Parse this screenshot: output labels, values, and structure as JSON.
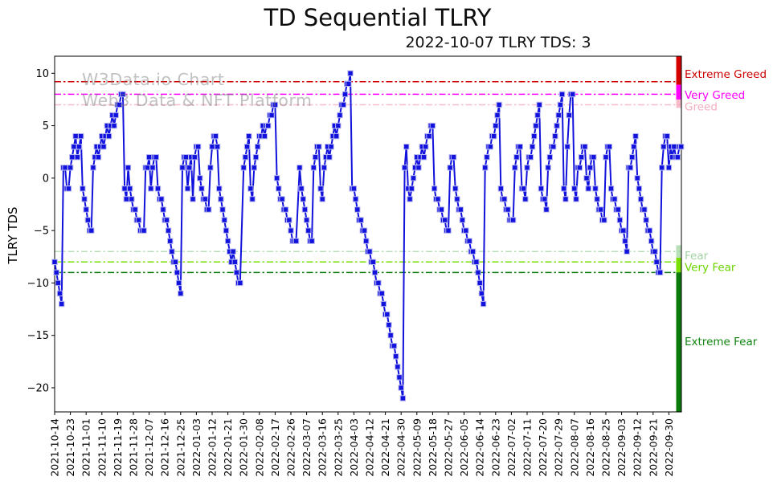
{
  "title": "TD Sequential TLRY",
  "subtitle": "2022-10-07 TLRY TDS: 3",
  "watermark": {
    "line1": "W3Data.io Chart",
    "line2": "Web3 Data & NFT Platform"
  },
  "y_axis_label": "TLRY TDS",
  "chart_data": {
    "type": "line",
    "marker": "square",
    "series_name": "TLRY TDS",
    "line_color": "#1212dd",
    "marker_edge_color": "#b9b9f2",
    "start_date": "2021-10-14",
    "end_date": "2022-10-07",
    "x_tick_interval_days": 9,
    "x_tick_labels": [
      "2021-10-14",
      "2021-10-23",
      "2021-11-01",
      "2021-11-10",
      "2021-11-19",
      "2021-11-28",
      "2021-12-07",
      "2021-12-16",
      "2021-12-25",
      "2022-01-03",
      "2022-01-12",
      "2022-01-21",
      "2022-01-30",
      "2022-02-08",
      "2022-02-17",
      "2022-02-26",
      "2022-03-07",
      "2022-03-16",
      "2022-03-25",
      "2022-04-03",
      "2022-04-12",
      "2022-04-21",
      "2022-04-30",
      "2022-05-09",
      "2022-05-18",
      "2022-05-27",
      "2022-06-05",
      "2022-06-14",
      "2022-06-23",
      "2022-07-02",
      "2022-07-11",
      "2022-07-20",
      "2022-07-29",
      "2022-08-07",
      "2022-08-16",
      "2022-08-25",
      "2022-09-03",
      "2022-09-12",
      "2022-09-21",
      "2022-09-30"
    ],
    "y_ticks": [
      10,
      5,
      0,
      -5,
      -10,
      -15,
      -20
    ],
    "ylim": [
      -22.3,
      11.63
    ],
    "xlim_days": [
      0,
      358
    ],
    "grid": false,
    "legend": "none",
    "zones": [
      {
        "label": "Extreme Greed",
        "line_value": 9.2,
        "band": [
          11.63,
          8.9
        ],
        "color": "#d40000",
        "label_color": "#cc0000",
        "label_value": 9.9,
        "opacity": 1
      },
      {
        "label": "Very Greed",
        "line_value": 8,
        "band": [
          8.9,
          7.5
        ],
        "color": "#ff00ff",
        "label_color": "#ff00ff",
        "label_value": 7.9,
        "opacity": 1
      },
      {
        "label": "Greed",
        "line_value": 7,
        "band": [
          7.5,
          6.7
        ],
        "color": "#f6a6b8",
        "label_color": "#f3adbd",
        "label_value": 6.8,
        "opacity": 0.75
      },
      {
        "label": "Fear",
        "line_value": -7,
        "band": [
          -6.4,
          -7.6
        ],
        "color": "#a6d7a6",
        "label_color": "#a2d2a2",
        "label_value": -7.4,
        "opacity": 0.8
      },
      {
        "label": "Very Fear",
        "line_value": -8,
        "band": [
          -7.6,
          -9.0
        ],
        "color": "#79df00",
        "label_color": "#6cd400",
        "label_value": -8.5,
        "opacity": 1
      },
      {
        "label": "Extreme Fear",
        "line_value": -9,
        "band": [
          -9.0,
          -22.3
        ],
        "color": "#0a7a0a",
        "label_color": "#128312",
        "label_value": -15.6,
        "opacity": 1
      }
    ],
    "points": [
      [
        0,
        -8
      ],
      [
        1,
        -9
      ],
      [
        2,
        -10
      ],
      [
        3,
        -11
      ],
      [
        4,
        -12
      ],
      [
        5,
        1
      ],
      [
        6,
        1
      ],
      [
        7,
        -1
      ],
      [
        8,
        -1
      ],
      [
        9,
        1
      ],
      [
        10,
        2
      ],
      [
        11,
        3
      ],
      [
        12,
        4
      ],
      [
        13,
        2
      ],
      [
        14,
        3
      ],
      [
        15,
        4
      ],
      [
        16,
        -1
      ],
      [
        17,
        -2
      ],
      [
        18,
        -3
      ],
      [
        19,
        -4
      ],
      [
        20,
        -5
      ],
      [
        21,
        -5
      ],
      [
        22,
        1
      ],
      [
        23,
        2
      ],
      [
        24,
        3
      ],
      [
        25,
        2
      ],
      [
        26,
        3
      ],
      [
        27,
        4
      ],
      [
        28,
        3
      ],
      [
        29,
        4
      ],
      [
        30,
        5
      ],
      [
        31,
        4
      ],
      [
        32,
        5
      ],
      [
        33,
        6
      ],
      [
        34,
        5
      ],
      [
        35,
        6
      ],
      [
        36,
        7
      ],
      [
        37,
        7
      ],
      [
        38,
        8
      ],
      [
        39,
        8
      ],
      [
        40,
        -1
      ],
      [
        41,
        -2
      ],
      [
        42,
        1
      ],
      [
        43,
        -1
      ],
      [
        44,
        -2
      ],
      [
        45,
        -3
      ],
      [
        46,
        -3
      ],
      [
        47,
        -4
      ],
      [
        48,
        -4
      ],
      [
        49,
        -5
      ],
      [
        50,
        -5
      ],
      [
        51,
        -5
      ],
      [
        52,
        1
      ],
      [
        53,
        1
      ],
      [
        54,
        2
      ],
      [
        55,
        -1
      ],
      [
        56,
        1
      ],
      [
        57,
        2
      ],
      [
        58,
        2
      ],
      [
        59,
        -1
      ],
      [
        60,
        -2
      ],
      [
        61,
        -2
      ],
      [
        62,
        -3
      ],
      [
        63,
        -4
      ],
      [
        64,
        -4
      ],
      [
        65,
        -5
      ],
      [
        66,
        -6
      ],
      [
        67,
        -7
      ],
      [
        68,
        -8
      ],
      [
        69,
        -8
      ],
      [
        70,
        -9
      ],
      [
        71,
        -10
      ],
      [
        72,
        -11
      ],
      [
        73,
        1
      ],
      [
        74,
        2
      ],
      [
        75,
        2
      ],
      [
        76,
        -1
      ],
      [
        77,
        1
      ],
      [
        78,
        2
      ],
      [
        79,
        -2
      ],
      [
        80,
        2
      ],
      [
        81,
        3
      ],
      [
        82,
        3
      ],
      [
        83,
        0
      ],
      [
        84,
        -1
      ],
      [
        85,
        -2
      ],
      [
        86,
        -2
      ],
      [
        87,
        -3
      ],
      [
        88,
        -3
      ],
      [
        89,
        1
      ],
      [
        90,
        3
      ],
      [
        91,
        4
      ],
      [
        92,
        4
      ],
      [
        93,
        3
      ],
      [
        94,
        -1
      ],
      [
        95,
        -2
      ],
      [
        96,
        -3
      ],
      [
        97,
        -4
      ],
      [
        98,
        -5
      ],
      [
        99,
        -6
      ],
      [
        100,
        -7
      ],
      [
        101,
        -8
      ],
      [
        102,
        -7
      ],
      [
        103,
        -8
      ],
      [
        104,
        -9
      ],
      [
        105,
        -10
      ],
      [
        106,
        -10
      ],
      [
        108,
        1
      ],
      [
        109,
        2
      ],
      [
        110,
        3
      ],
      [
        111,
        4
      ],
      [
        112,
        -1
      ],
      [
        113,
        -2
      ],
      [
        114,
        1
      ],
      [
        115,
        2
      ],
      [
        116,
        3
      ],
      [
        117,
        4
      ],
      [
        118,
        4
      ],
      [
        119,
        5
      ],
      [
        120,
        4
      ],
      [
        121,
        5
      ],
      [
        122,
        5
      ],
      [
        123,
        6
      ],
      [
        124,
        6
      ],
      [
        125,
        7
      ],
      [
        126,
        7
      ],
      [
        127,
        0
      ],
      [
        128,
        -1
      ],
      [
        129,
        -2
      ],
      [
        130,
        -2
      ],
      [
        131,
        -3
      ],
      [
        132,
        -3
      ],
      [
        133,
        -4
      ],
      [
        134,
        -4
      ],
      [
        135,
        -5
      ],
      [
        136,
        -6
      ],
      [
        137,
        -6
      ],
      [
        138,
        -6
      ],
      [
        140,
        1
      ],
      [
        141,
        -1
      ],
      [
        142,
        -2
      ],
      [
        143,
        -3
      ],
      [
        144,
        -4
      ],
      [
        145,
        -5
      ],
      [
        146,
        -6
      ],
      [
        147,
        -6
      ],
      [
        148,
        1
      ],
      [
        149,
        2
      ],
      [
        150,
        3
      ],
      [
        151,
        3
      ],
      [
        152,
        -1
      ],
      [
        153,
        -2
      ],
      [
        154,
        1
      ],
      [
        155,
        2
      ],
      [
        156,
        3
      ],
      [
        157,
        2
      ],
      [
        158,
        3
      ],
      [
        159,
        4
      ],
      [
        160,
        5
      ],
      [
        161,
        4
      ],
      [
        162,
        5
      ],
      [
        163,
        6
      ],
      [
        164,
        7
      ],
      [
        165,
        7
      ],
      [
        166,
        8
      ],
      [
        167,
        9
      ],
      [
        168,
        9
      ],
      [
        169,
        10
      ],
      [
        170,
        -1
      ],
      [
        171,
        -1
      ],
      [
        172,
        -2
      ],
      [
        173,
        -3
      ],
      [
        174,
        -4
      ],
      [
        175,
        -4
      ],
      [
        176,
        -5
      ],
      [
        177,
        -5
      ],
      [
        178,
        -6
      ],
      [
        179,
        -7
      ],
      [
        180,
        -7
      ],
      [
        181,
        -8
      ],
      [
        182,
        -8
      ],
      [
        183,
        -9
      ],
      [
        184,
        -10
      ],
      [
        185,
        -10
      ],
      [
        186,
        -11
      ],
      [
        187,
        -11
      ],
      [
        188,
        -12
      ],
      [
        189,
        -13
      ],
      [
        190,
        -13
      ],
      [
        191,
        -14
      ],
      [
        192,
        -15
      ],
      [
        193,
        -16
      ],
      [
        194,
        -16
      ],
      [
        195,
        -17
      ],
      [
        196,
        -18
      ],
      [
        197,
        -19
      ],
      [
        198,
        -20
      ],
      [
        199,
        -21
      ],
      [
        200,
        1
      ],
      [
        201,
        3
      ],
      [
        202,
        -1
      ],
      [
        203,
        -2
      ],
      [
        204,
        -1
      ],
      [
        205,
        0
      ],
      [
        206,
        1
      ],
      [
        207,
        2
      ],
      [
        208,
        1
      ],
      [
        209,
        2
      ],
      [
        210,
        3
      ],
      [
        211,
        2
      ],
      [
        212,
        3
      ],
      [
        213,
        4
      ],
      [
        214,
        4
      ],
      [
        215,
        5
      ],
      [
        216,
        5
      ],
      [
        217,
        -1
      ],
      [
        218,
        -2
      ],
      [
        219,
        -2
      ],
      [
        220,
        -3
      ],
      [
        221,
        -3
      ],
      [
        222,
        -4
      ],
      [
        223,
        -4
      ],
      [
        224,
        -5
      ],
      [
        225,
        -5
      ],
      [
        226,
        1
      ],
      [
        227,
        2
      ],
      [
        228,
        2
      ],
      [
        229,
        -1
      ],
      [
        230,
        -2
      ],
      [
        231,
        -3
      ],
      [
        232,
        -3
      ],
      [
        233,
        -4
      ],
      [
        234,
        -5
      ],
      [
        235,
        -5
      ],
      [
        236,
        -6
      ],
      [
        237,
        -6
      ],
      [
        238,
        -7
      ],
      [
        239,
        -7
      ],
      [
        240,
        -8
      ],
      [
        241,
        -8
      ],
      [
        242,
        -9
      ],
      [
        243,
        -10
      ],
      [
        244,
        -11
      ],
      [
        245,
        -12
      ],
      [
        246,
        1
      ],
      [
        247,
        2
      ],
      [
        248,
        3
      ],
      [
        249,
        3
      ],
      [
        250,
        4
      ],
      [
        251,
        4
      ],
      [
        252,
        5
      ],
      [
        253,
        6
      ],
      [
        254,
        7
      ],
      [
        255,
        -1
      ],
      [
        256,
        -2
      ],
      [
        257,
        -2
      ],
      [
        258,
        -3
      ],
      [
        259,
        -3
      ],
      [
        260,
        -4
      ],
      [
        261,
        -4
      ],
      [
        262,
        -4
      ],
      [
        263,
        1
      ],
      [
        264,
        2
      ],
      [
        265,
        3
      ],
      [
        266,
        3
      ],
      [
        267,
        -1
      ],
      [
        268,
        -1
      ],
      [
        269,
        -2
      ],
      [
        270,
        1
      ],
      [
        271,
        2
      ],
      [
        272,
        2
      ],
      [
        273,
        3
      ],
      [
        274,
        4
      ],
      [
        275,
        5
      ],
      [
        276,
        6
      ],
      [
        277,
        7
      ],
      [
        278,
        -1
      ],
      [
        279,
        -2
      ],
      [
        280,
        -2
      ],
      [
        281,
        -3
      ],
      [
        282,
        1
      ],
      [
        283,
        2
      ],
      [
        284,
        3
      ],
      [
        285,
        3
      ],
      [
        286,
        4
      ],
      [
        287,
        5
      ],
      [
        288,
        6
      ],
      [
        289,
        7
      ],
      [
        290,
        8
      ],
      [
        291,
        -1
      ],
      [
        292,
        -2
      ],
      [
        293,
        3
      ],
      [
        294,
        6
      ],
      [
        295,
        8
      ],
      [
        296,
        8
      ],
      [
        297,
        -1
      ],
      [
        298,
        -2
      ],
      [
        299,
        1
      ],
      [
        300,
        1
      ],
      [
        301,
        2
      ],
      [
        302,
        3
      ],
      [
        303,
        3
      ],
      [
        304,
        0
      ],
      [
        305,
        -1
      ],
      [
        306,
        1
      ],
      [
        307,
        2
      ],
      [
        308,
        2
      ],
      [
        309,
        -1
      ],
      [
        310,
        -2
      ],
      [
        311,
        -3
      ],
      [
        312,
        -3
      ],
      [
        313,
        -4
      ],
      [
        314,
        -4
      ],
      [
        315,
        2
      ],
      [
        316,
        3
      ],
      [
        317,
        3
      ],
      [
        318,
        -1
      ],
      [
        319,
        -2
      ],
      [
        320,
        -2
      ],
      [
        321,
        -3
      ],
      [
        322,
        -3
      ],
      [
        323,
        -4
      ],
      [
        324,
        -5
      ],
      [
        325,
        -5
      ],
      [
        326,
        -6
      ],
      [
        327,
        -7
      ],
      [
        328,
        1
      ],
      [
        329,
        1
      ],
      [
        330,
        2
      ],
      [
        331,
        3
      ],
      [
        332,
        4
      ],
      [
        333,
        0
      ],
      [
        334,
        -1
      ],
      [
        335,
        -2
      ],
      [
        336,
        -3
      ],
      [
        337,
        -3
      ],
      [
        338,
        -4
      ],
      [
        339,
        -5
      ],
      [
        340,
        -5
      ],
      [
        341,
        -6
      ],
      [
        342,
        -7
      ],
      [
        343,
        -7
      ],
      [
        344,
        -8
      ],
      [
        345,
        -9
      ],
      [
        346,
        -9
      ],
      [
        347,
        1
      ],
      [
        348,
        3
      ],
      [
        349,
        4
      ],
      [
        350,
        4
      ],
      [
        351,
        1
      ],
      [
        352,
        3
      ],
      [
        353,
        2
      ],
      [
        354,
        3
      ],
      [
        355,
        2
      ],
      [
        356,
        2
      ],
      [
        357,
        3
      ],
      [
        358,
        3
      ]
    ]
  }
}
